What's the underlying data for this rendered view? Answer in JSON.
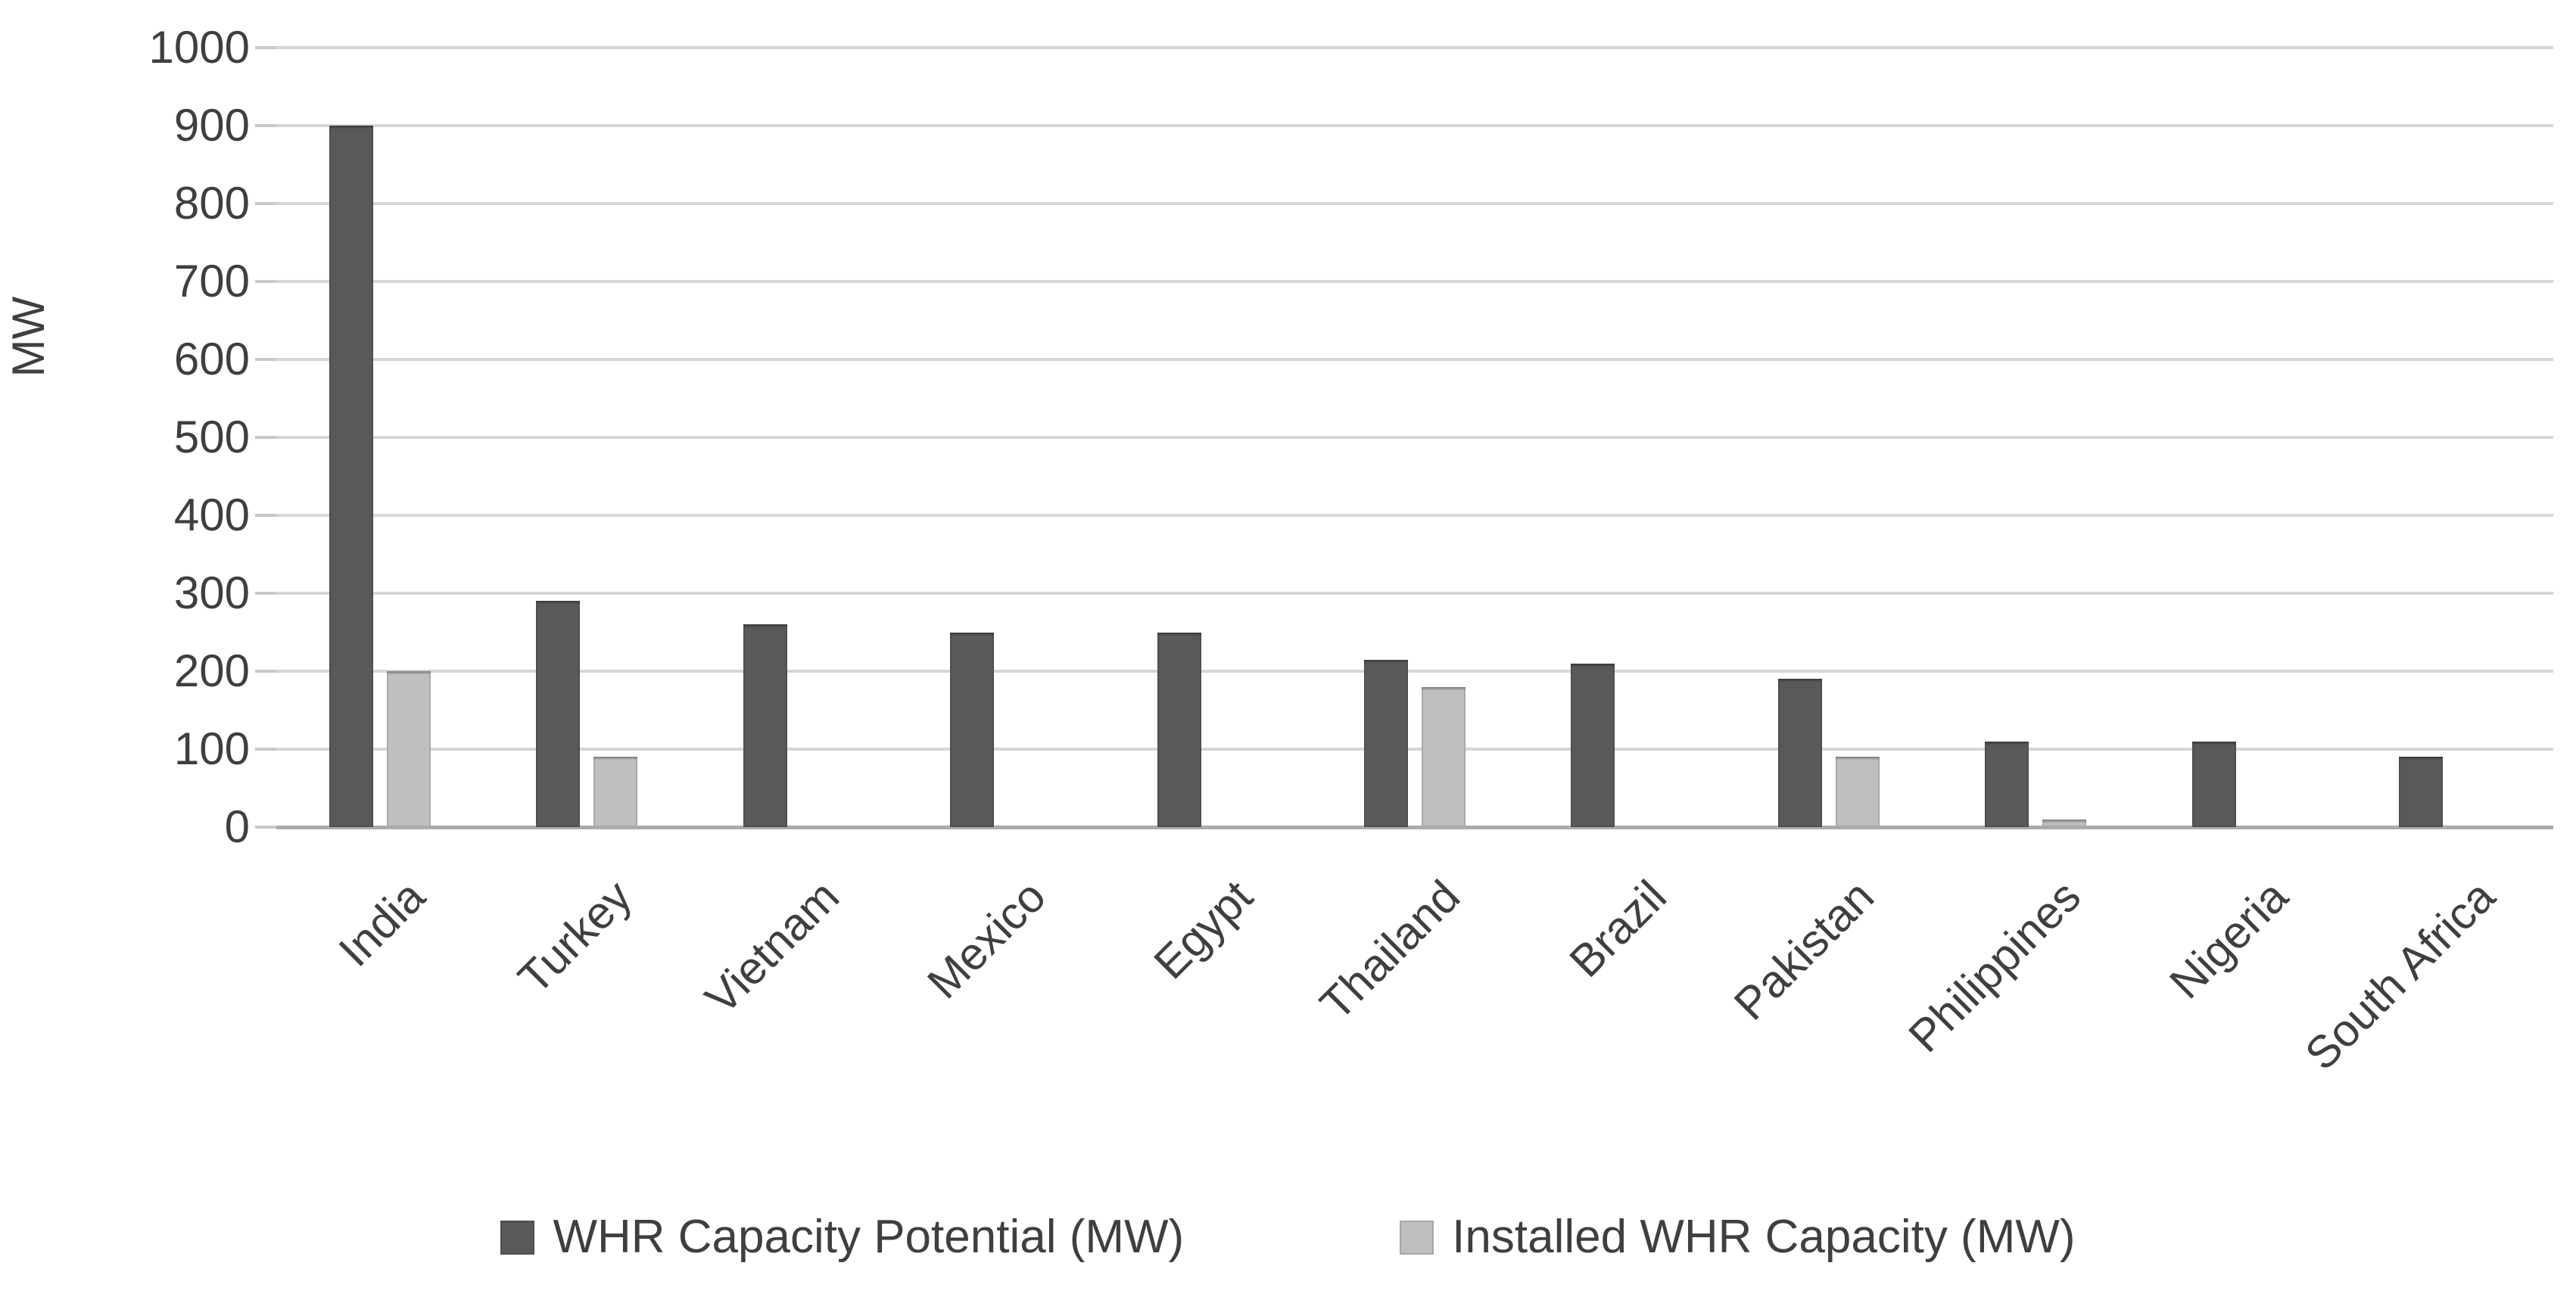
{
  "chart_data": {
    "type": "bar",
    "title": "",
    "ylabel": "MW",
    "xlabel": "",
    "ylim": [
      0,
      1000
    ],
    "ytick_step": 100,
    "grid": true,
    "legend_position": "bottom",
    "categories": [
      "India",
      "Turkey",
      "Vietnam",
      "Mexico",
      "Egypt",
      "Thailand",
      "Brazil",
      "Pakistan",
      "Philippines",
      "Nigeria",
      "South Africa"
    ],
    "series": [
      {
        "name": "WHR Capacity Potential (MW)",
        "key": "potential",
        "color": "#595959",
        "values": [
          900,
          290,
          260,
          250,
          250,
          215,
          210,
          190,
          110,
          110,
          90
        ]
      },
      {
        "name": "Installed WHR Capacity (MW)",
        "key": "installed",
        "color": "#bfbfbf",
        "values": [
          200,
          90,
          0,
          0,
          0,
          180,
          0,
          90,
          10,
          0,
          0
        ]
      }
    ],
    "colors": {
      "gridline": "#d6d6d6",
      "axis_line": "#ababab",
      "text": "#3f3f3f"
    }
  }
}
